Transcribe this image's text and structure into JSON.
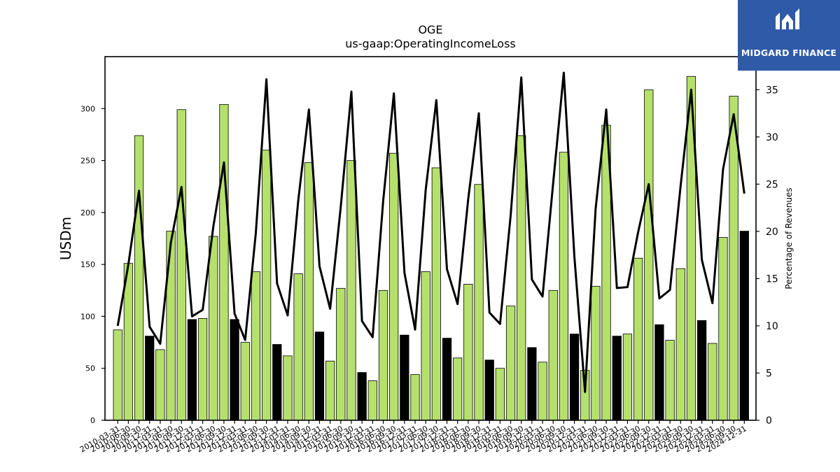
{
  "colors": {
    "bar_regular": "#b5e06c",
    "bar_q4": "#000000",
    "line": "#000000",
    "logo_bg": "#2f5aa8"
  },
  "logo": {
    "text": "MIDGARD FINANCE",
    "icon": "midgard-logo-icon"
  },
  "chart_data": {
    "type": "bar",
    "title": "OGE",
    "subtitle": "us-gaap:OperatingIncomeLoss",
    "ylabel": "USDm",
    "y2label": "Percentage of Revenues",
    "ylim": [
      0,
      350
    ],
    "y2lim": [
      0,
      38.5
    ],
    "yticks": [
      0,
      50,
      100,
      150,
      200,
      250,
      300
    ],
    "y2ticks": [
      0,
      5,
      10,
      15,
      20,
      25,
      30,
      35
    ],
    "x": [
      "2010-03-31",
      "2010-06-30",
      "2010-09-30",
      "2010-12-31",
      "2011-03-31",
      "2011-06-30",
      "2011-09-30",
      "2011-12-31",
      "2012-03-31",
      "2012-06-30",
      "2012-09-30",
      "2012-12-31",
      "2013-03-31",
      "2013-06-30",
      "2013-09-30",
      "2013-12-31",
      "2014-03-31",
      "2014-06-30",
      "2014-09-30",
      "2014-12-31",
      "2015-03-31",
      "2015-06-30",
      "2015-09-30",
      "2015-12-31",
      "2016-03-31",
      "2016-06-30",
      "2016-09-30",
      "2016-12-31",
      "2017-03-31",
      "2017-06-30",
      "2017-09-30",
      "2017-12-31",
      "2018-03-31",
      "2018-06-30",
      "2018-09-30",
      "2018-12-31",
      "2019-03-31",
      "2019-06-30",
      "2019-09-30",
      "2019-12-31",
      "2020-03-31",
      "2020-06-30",
      "2020-09-30",
      "2020-12-31",
      "2021-03-31",
      "2021-06-30",
      "2021-09-30",
      "2021-12-31",
      "2022-03-31",
      "2022-06-30",
      "2022-09-30",
      "2022-12-31",
      "2023-03-31",
      "2023-06-30",
      "2023-09-30",
      "2023-12-31",
      "2024-03-31",
      "2024-06-30",
      "2024-09-30",
      "2024-12-31"
    ],
    "series": [
      {
        "kind": "bar",
        "values": [
          87,
          151,
          274,
          81,
          68,
          182,
          299,
          97,
          98,
          177,
          304,
          97,
          75,
          143,
          260,
          73,
          62,
          141,
          248,
          85,
          57,
          127,
          250,
          46,
          38,
          125,
          257,
          82,
          44,
          143,
          243,
          79,
          60,
          131,
          227,
          58,
          50,
          110,
          274,
          70,
          56,
          125,
          258,
          83,
          48,
          129,
          284,
          81,
          83,
          156,
          318,
          92,
          77,
          146,
          331,
          96,
          74,
          176,
          312,
          182
        ]
      },
      {
        "kind": "line",
        "axis": "right",
        "values": [
          10.0,
          16.5,
          24.3,
          9.9,
          8.1,
          18.8,
          24.7,
          11.0,
          11.7,
          20.5,
          27.3,
          11.3,
          8.5,
          19.8,
          36.1,
          14.5,
          11.1,
          23.3,
          32.9,
          16.3,
          11.8,
          22.6,
          34.8,
          10.5,
          8.8,
          23.3,
          34.6,
          15.6,
          9.6,
          24.4,
          33.9,
          16.0,
          12.3,
          23.4,
          32.5,
          11.4,
          10.2,
          21.7,
          36.3,
          14.9,
          13.1,
          25.1,
          36.8,
          17.3,
          3.0,
          22.4,
          32.9,
          14.0,
          14.1,
          19.9,
          25.0,
          12.9,
          13.8,
          24.8,
          35.0,
          17.0,
          12.4,
          26.6,
          32.4,
          24.0
        ]
      }
    ]
  }
}
